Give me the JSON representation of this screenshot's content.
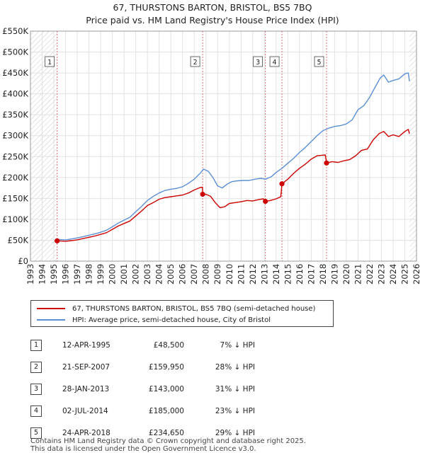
{
  "title_line1": "67, THURSTONS BARTON, BRISTOL, BS5 7BQ",
  "title_line2": "Price paid vs. HM Land Registry's House Price Index (HPI)",
  "chart_data": {
    "type": "line",
    "title": "Price paid vs. HM Land Registry's House Price Index (HPI)",
    "xlabel": "",
    "ylabel": "",
    "xlim": [
      1993,
      2026
    ],
    "ylim": [
      0,
      550000
    ],
    "x_ticks": [
      "1993",
      "1994",
      "1995",
      "1996",
      "1997",
      "1998",
      "1999",
      "2000",
      "2001",
      "2002",
      "2003",
      "2004",
      "2005",
      "2006",
      "2007",
      "2008",
      "2009",
      "2010",
      "2011",
      "2012",
      "2013",
      "2014",
      "2015",
      "2016",
      "2017",
      "2018",
      "2019",
      "2020",
      "2021",
      "2022",
      "2023",
      "2024",
      "2025",
      "2026"
    ],
    "y_ticks": [
      {
        "value": 0,
        "label": "£0"
      },
      {
        "value": 50000,
        "label": "£50K"
      },
      {
        "value": 100000,
        "label": "£100K"
      },
      {
        "value": 150000,
        "label": "£150K"
      },
      {
        "value": 200000,
        "label": "£200K"
      },
      {
        "value": 250000,
        "label": "£250K"
      },
      {
        "value": 300000,
        "label": "£300K"
      },
      {
        "value": 350000,
        "label": "£350K"
      },
      {
        "value": 400000,
        "label": "£400K"
      },
      {
        "value": 450000,
        "label": "£450K"
      },
      {
        "value": 500000,
        "label": "£500K"
      },
      {
        "value": 550000,
        "label": "£550K"
      }
    ],
    "hatched_ranges": [
      [
        1993,
        1995.28
      ],
      [
        2025.4,
        2026
      ]
    ],
    "series": [
      {
        "name": "67, THURSTONS BARTON, BRISTOL, BS5 7BQ (semi-detached house)",
        "color": "#cc0000",
        "points": [
          [
            1995.28,
            48500
          ],
          [
            1995.6,
            48000
          ],
          [
            1996,
            47500
          ],
          [
            1996.5,
            49000
          ],
          [
            1997,
            51000
          ],
          [
            1997.5,
            54000
          ],
          [
            1998,
            57000
          ],
          [
            1998.5,
            60000
          ],
          [
            1999,
            64000
          ],
          [
            1999.5,
            68000
          ],
          [
            2000,
            76000
          ],
          [
            2000.5,
            84000
          ],
          [
            2001,
            90000
          ],
          [
            2001.5,
            96000
          ],
          [
            2002,
            108000
          ],
          [
            2002.5,
            120000
          ],
          [
            2003,
            133000
          ],
          [
            2003.5,
            140000
          ],
          [
            2004,
            148000
          ],
          [
            2004.5,
            152000
          ],
          [
            2005,
            154000
          ],
          [
            2005.5,
            156000
          ],
          [
            2006,
            158000
          ],
          [
            2006.5,
            163000
          ],
          [
            2007,
            170000
          ],
          [
            2007.5,
            176000
          ],
          [
            2007.7,
            177000
          ],
          [
            2007.72,
            159950
          ],
          [
            2008,
            160000
          ],
          [
            2008.4,
            155000
          ],
          [
            2008.8,
            140000
          ],
          [
            2009.2,
            128000
          ],
          [
            2009.6,
            130000
          ],
          [
            2010,
            138000
          ],
          [
            2010.5,
            140000
          ],
          [
            2011,
            142000
          ],
          [
            2011.5,
            145000
          ],
          [
            2012,
            144000
          ],
          [
            2012.5,
            147000
          ],
          [
            2012.9,
            149000
          ],
          [
            2013.08,
            143000
          ],
          [
            2013.5,
            145000
          ],
          [
            2014,
            149000
          ],
          [
            2014.4,
            154000
          ],
          [
            2014.5,
            185000
          ],
          [
            2015,
            196000
          ],
          [
            2015.5,
            210000
          ],
          [
            2016,
            222000
          ],
          [
            2016.5,
            232000
          ],
          [
            2017,
            244000
          ],
          [
            2017.5,
            252000
          ],
          [
            2018.2,
            254000
          ],
          [
            2018.31,
            234650
          ],
          [
            2018.8,
            238000
          ],
          [
            2019.3,
            236000
          ],
          [
            2019.8,
            240000
          ],
          [
            2020.3,
            243000
          ],
          [
            2020.8,
            252000
          ],
          [
            2021.3,
            265000
          ],
          [
            2021.8,
            268000
          ],
          [
            2022.3,
            290000
          ],
          [
            2022.8,
            305000
          ],
          [
            2023.2,
            310000
          ],
          [
            2023.6,
            298000
          ],
          [
            2024,
            302000
          ],
          [
            2024.5,
            298000
          ],
          [
            2025,
            310000
          ],
          [
            2025.3,
            315000
          ],
          [
            2025.4,
            305000
          ]
        ]
      },
      {
        "name": "HPI: Average price, semi-detached house, City of Bristol",
        "color": "#5b8fd4",
        "points": [
          [
            1995.28,
            52000
          ],
          [
            1995.6,
            51500
          ],
          [
            1996,
            51000
          ],
          [
            1996.5,
            53000
          ],
          [
            1997,
            55500
          ],
          [
            1997.5,
            58500
          ],
          [
            1998,
            62000
          ],
          [
            1998.5,
            65000
          ],
          [
            1999,
            69000
          ],
          [
            1999.5,
            74000
          ],
          [
            2000,
            82000
          ],
          [
            2000.5,
            91000
          ],
          [
            2001,
            98000
          ],
          [
            2001.5,
            105000
          ],
          [
            2002,
            118000
          ],
          [
            2002.5,
            131000
          ],
          [
            2003,
            145000
          ],
          [
            2003.5,
            155000
          ],
          [
            2004,
            163000
          ],
          [
            2004.5,
            169000
          ],
          [
            2005,
            172000
          ],
          [
            2005.5,
            174000
          ],
          [
            2006,
            178000
          ],
          [
            2006.5,
            186000
          ],
          [
            2007,
            196000
          ],
          [
            2007.5,
            210000
          ],
          [
            2007.8,
            220000
          ],
          [
            2008.2,
            215000
          ],
          [
            2008.6,
            200000
          ],
          [
            2009,
            180000
          ],
          [
            2009.4,
            175000
          ],
          [
            2009.8,
            184000
          ],
          [
            2010.2,
            190000
          ],
          [
            2010.7,
            192000
          ],
          [
            2011.2,
            193000
          ],
          [
            2011.7,
            193000
          ],
          [
            2012.2,
            196000
          ],
          [
            2012.7,
            198000
          ],
          [
            2013.1,
            196000
          ],
          [
            2013.6,
            202000
          ],
          [
            2014,
            212000
          ],
          [
            2014.5,
            222000
          ],
          [
            2015,
            234000
          ],
          [
            2015.5,
            246000
          ],
          [
            2016,
            260000
          ],
          [
            2016.5,
            272000
          ],
          [
            2017,
            286000
          ],
          [
            2017.5,
            300000
          ],
          [
            2018,
            312000
          ],
          [
            2018.5,
            318000
          ],
          [
            2019,
            322000
          ],
          [
            2019.5,
            324000
          ],
          [
            2020,
            328000
          ],
          [
            2020.5,
            338000
          ],
          [
            2021,
            362000
          ],
          [
            2021.5,
            372000
          ],
          [
            2022,
            392000
          ],
          [
            2022.5,
            418000
          ],
          [
            2022.9,
            438000
          ],
          [
            2023.2,
            445000
          ],
          [
            2023.6,
            428000
          ],
          [
            2024,
            432000
          ],
          [
            2024.5,
            436000
          ],
          [
            2025,
            448000
          ],
          [
            2025.3,
            450000
          ],
          [
            2025.4,
            430000
          ]
        ]
      }
    ],
    "sales": [
      {
        "num": "1",
        "x": 1995.28,
        "value": 48500,
        "date": "12-APR-1995",
        "price": "£48,500",
        "hpi_diff": "7% ↓ HPI"
      },
      {
        "num": "2",
        "x": 2007.72,
        "value": 159950,
        "date": "21-SEP-2007",
        "price": "£159,950",
        "hpi_diff": "28% ↓ HPI"
      },
      {
        "num": "3",
        "x": 2013.08,
        "value": 143000,
        "date": "28-JAN-2013",
        "price": "£143,000",
        "hpi_diff": "31% ↓ HPI"
      },
      {
        "num": "4",
        "x": 2014.5,
        "value": 185000,
        "date": "02-JUL-2014",
        "price": "£185,000",
        "hpi_diff": "23% ↓ HPI"
      },
      {
        "num": "5",
        "x": 2018.31,
        "value": 234650,
        "date": "24-APR-2018",
        "price": "£234,650",
        "hpi_diff": "29% ↓ HPI"
      }
    ]
  },
  "legend": {
    "series1": "67, THURSTONS BARTON, BRISTOL, BS5 7BQ (semi-detached house)",
    "series2": "HPI: Average price, semi-detached house, City of Bristol"
  },
  "footer": {
    "line1": "Contains HM Land Registry data © Crown copyright and database right 2025.",
    "line2": "This data is licensed under the Open Government Licence v3.0."
  }
}
